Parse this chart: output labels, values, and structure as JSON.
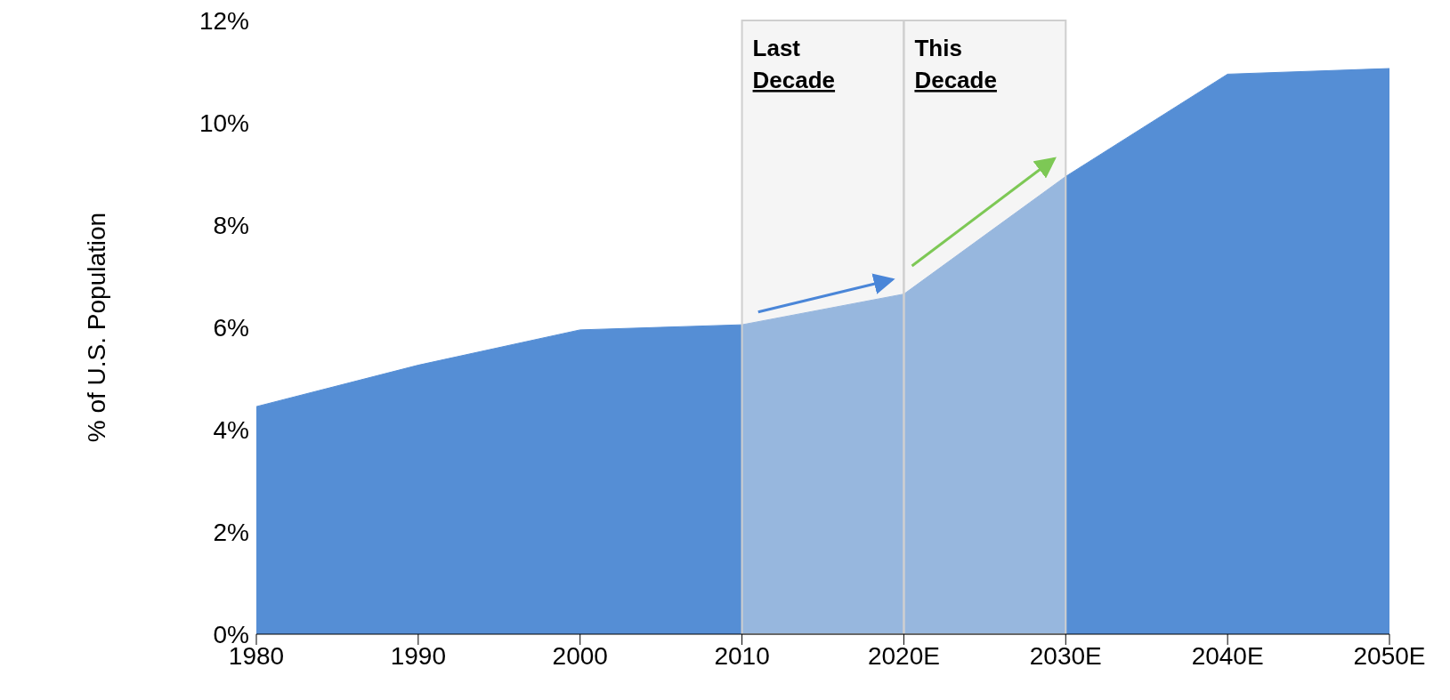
{
  "chart_data": {
    "type": "area",
    "ylabel": "% of U.S. Population",
    "categories": [
      "1980",
      "1990",
      "2000",
      "2010",
      "2020E",
      "2030E",
      "2040E",
      "2050E"
    ],
    "values": [
      4.45,
      5.26,
      5.95,
      6.05,
      6.65,
      8.95,
      10.95,
      11.06
    ],
    "color": "#558ed5",
    "ylim": [
      0,
      12
    ],
    "yticks": [
      {
        "value": 0,
        "label": "0%"
      },
      {
        "value": 2,
        "label": "2%"
      },
      {
        "value": 4,
        "label": "4%"
      },
      {
        "value": 6,
        "label": "6%"
      },
      {
        "value": 8,
        "label": "8%"
      },
      {
        "value": 10,
        "label": "10%"
      },
      {
        "value": 12,
        "label": "12%"
      }
    ],
    "bands": [
      {
        "axis": "x",
        "from": "2010",
        "to": "2020E",
        "label": "Last Decade",
        "color": "#e8e8e8"
      },
      {
        "axis": "x",
        "from": "2020E",
        "to": "2030E",
        "label": "This Decade",
        "color": "#e8e8e8"
      }
    ],
    "grid": false,
    "legend": false
  }
}
